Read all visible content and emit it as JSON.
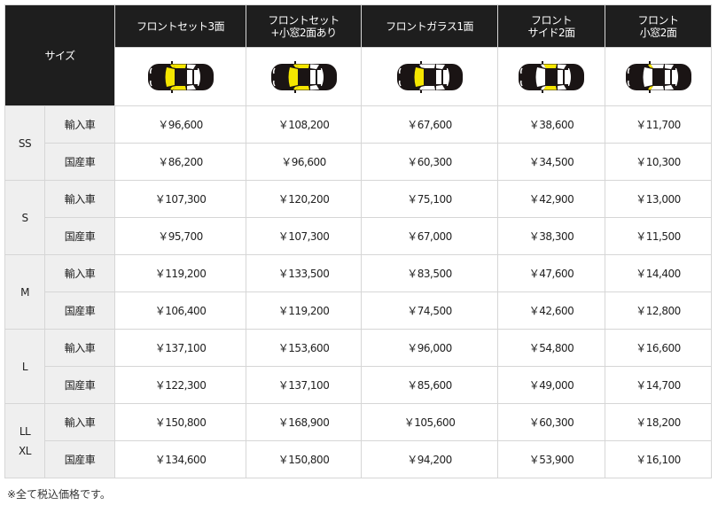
{
  "header": {
    "size_label": "サイズ",
    "columns": [
      {
        "label": "フロントセット3面",
        "highlight": [
          "windshield",
          "front-side",
          "quarter"
        ]
      },
      {
        "label": "フロントセット\n+小窓2面あり",
        "highlight": [
          "windshield",
          "front-side",
          "quarter"
        ]
      },
      {
        "label": "フロントガラス1面",
        "highlight": [
          "windshield"
        ]
      },
      {
        "label": "フロント\nサイド2面",
        "highlight": [
          "front-side"
        ]
      },
      {
        "label": "フロント\n小窓2面",
        "highlight": [
          "quarter"
        ]
      }
    ]
  },
  "colors": {
    "header_bg": "#1e1e1e",
    "highlight": "#f5e600",
    "label_bg": "#efefef"
  },
  "groups": [
    {
      "size": "SS",
      "rows": [
        {
          "type": "輸入車",
          "prices": [
            "￥96,600",
            "￥108,200",
            "￥67,600",
            "￥38,600",
            "￥11,700"
          ]
        },
        {
          "type": "国産車",
          "prices": [
            "￥86,200",
            "￥96,600",
            "￥60,300",
            "￥34,500",
            "￥10,300"
          ]
        }
      ]
    },
    {
      "size": "S",
      "rows": [
        {
          "type": "輸入車",
          "prices": [
            "￥107,300",
            "￥120,200",
            "￥75,100",
            "￥42,900",
            "￥13,000"
          ]
        },
        {
          "type": "国産車",
          "prices": [
            "￥95,700",
            "￥107,300",
            "￥67,000",
            "￥38,300",
            "￥11,500"
          ]
        }
      ]
    },
    {
      "size": "M",
      "rows": [
        {
          "type": "輸入車",
          "prices": [
            "￥119,200",
            "￥133,500",
            "￥83,500",
            "￥47,600",
            "￥14,400"
          ]
        },
        {
          "type": "国産車",
          "prices": [
            "￥106,400",
            "￥119,200",
            "￥74,500",
            "￥42,600",
            "￥12,800"
          ]
        }
      ]
    },
    {
      "size": "L",
      "rows": [
        {
          "type": "輸入車",
          "prices": [
            "￥137,100",
            "￥153,600",
            "￥96,000",
            "￥54,800",
            "￥16,600"
          ]
        },
        {
          "type": "国産車",
          "prices": [
            "￥122,300",
            "￥137,100",
            "￥85,600",
            "￥49,000",
            "￥14,700"
          ]
        }
      ]
    },
    {
      "size": "LL\nXL",
      "rows": [
        {
          "type": "輸入車",
          "prices": [
            "￥150,800",
            "￥168,900",
            "￥105,600",
            "￥60,300",
            "￥18,200"
          ]
        },
        {
          "type": "国産車",
          "prices": [
            "￥134,600",
            "￥150,800",
            "￥94,200",
            "￥53,900",
            "￥16,100"
          ]
        }
      ]
    }
  ],
  "note": "※全て税込価格です。"
}
